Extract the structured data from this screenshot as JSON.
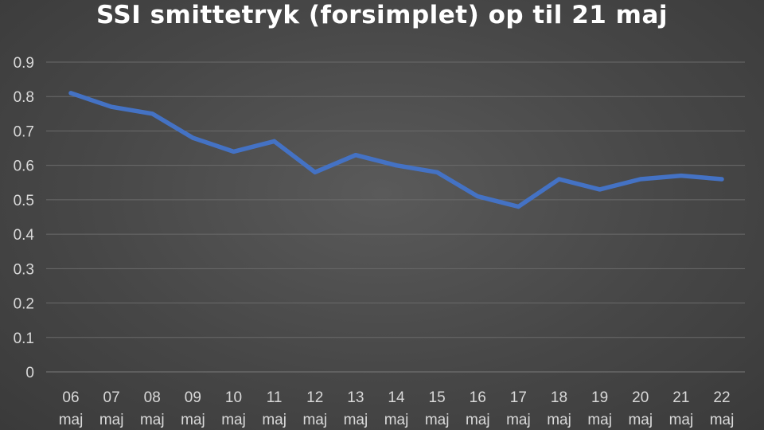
{
  "chart_data": {
    "type": "line",
    "title": "SSI smittetryk (forsimplet) op til 21 maj",
    "xlabel": "",
    "ylabel": "",
    "categories": [
      [
        "06",
        "maj"
      ],
      [
        "07",
        "maj"
      ],
      [
        "08",
        "maj"
      ],
      [
        "09",
        "maj"
      ],
      [
        "10",
        "maj"
      ],
      [
        "11",
        "maj"
      ],
      [
        "12",
        "maj"
      ],
      [
        "13",
        "maj"
      ],
      [
        "14",
        "maj"
      ],
      [
        "15",
        "maj"
      ],
      [
        "16",
        "maj"
      ],
      [
        "17",
        "maj"
      ],
      [
        "18",
        "maj"
      ],
      [
        "19",
        "maj"
      ],
      [
        "20",
        "maj"
      ],
      [
        "21",
        "maj"
      ],
      [
        "22",
        "maj"
      ]
    ],
    "series": [
      {
        "values": [
          0.81,
          0.77,
          0.75,
          0.68,
          0.64,
          0.67,
          0.58,
          0.63,
          0.6,
          0.58,
          0.51,
          0.48,
          0.56,
          0.53,
          0.56,
          0.57,
          0.56
        ],
        "color": "#4472c4"
      }
    ],
    "ylim": [
      0,
      0.9
    ],
    "yticks": [
      "0",
      "0.1",
      "0.2",
      "0.3",
      "0.4",
      "0.5",
      "0.6",
      "0.7",
      "0.8",
      "0.9"
    ],
    "grid": true,
    "legend": "none"
  }
}
